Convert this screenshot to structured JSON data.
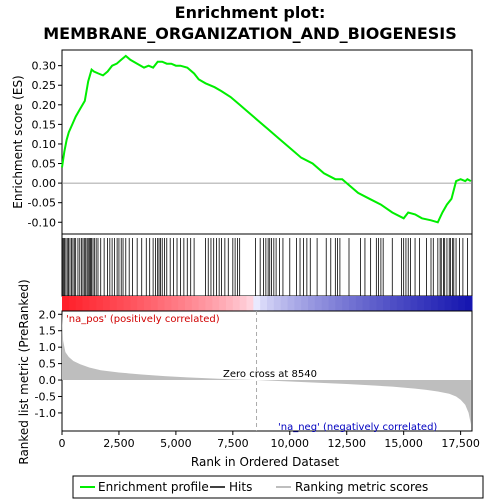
{
  "chart_data": {
    "type": "line",
    "title_line1": "Enrichment plot:",
    "title_line2": "MEMBRANE_ORGANIZATION_AND_BIOGENESIS",
    "xlabel": "Rank in Ordered Dataset",
    "es_ylabel": "Enrichment score (ES)",
    "metric_ylabel": "Ranked list metric (PreRanked)",
    "xlim": [
      0,
      18000
    ],
    "es_ylim": [
      -0.13,
      0.34
    ],
    "metric_ylim": [
      -1.55,
      2.1
    ],
    "x_ticks": [
      0,
      2500,
      5000,
      7500,
      10000,
      12500,
      15000,
      17500
    ],
    "x_tick_labels": [
      "0",
      "2,500",
      "5,000",
      "7,500",
      "10,000",
      "12,500",
      "15,000",
      "17,500"
    ],
    "es_ticks": [
      -0.1,
      -0.05,
      0.0,
      0.05,
      0.1,
      0.15,
      0.2,
      0.25,
      0.3
    ],
    "es_tick_labels": [
      "-0.10",
      "-0.05",
      "0.00",
      "0.05",
      "0.10",
      "0.15",
      "0.20",
      "0.25",
      "0.30"
    ],
    "metric_ticks": [
      2.0,
      1.5,
      1.0,
      0.5,
      0.0,
      -0.5,
      -1.0
    ],
    "metric_tick_labels": [
      "2.0",
      "1.5",
      "1.0",
      "0.5",
      "0.0",
      "-0.5",
      "-1.0"
    ],
    "enrichment_profile": {
      "name": "Enrichment profile",
      "color": "#00ee00",
      "x": [
        0,
        100,
        200,
        300,
        450,
        600,
        800,
        1000,
        1150,
        1300,
        1400,
        1600,
        1800,
        2000,
        2200,
        2400,
        2600,
        2800,
        3000,
        3300,
        3600,
        3800,
        4000,
        4200,
        4400,
        4600,
        4800,
        5000,
        5200,
        5500,
        5800,
        6000,
        6300,
        6700,
        7000,
        7400,
        7800,
        8200,
        8600,
        9000,
        9500,
        10000,
        10500,
        11000,
        11500,
        12000,
        12300,
        12600,
        13000,
        13500,
        14000,
        14500,
        15000,
        15200,
        15500,
        15800,
        16200,
        16500,
        16700,
        16900,
        17100,
        17300,
        17500,
        17700,
        17800,
        17950
      ],
      "y": [
        0.04,
        0.08,
        0.11,
        0.13,
        0.15,
        0.17,
        0.19,
        0.21,
        0.26,
        0.29,
        0.285,
        0.28,
        0.275,
        0.285,
        0.3,
        0.305,
        0.315,
        0.325,
        0.315,
        0.305,
        0.295,
        0.3,
        0.295,
        0.31,
        0.31,
        0.305,
        0.305,
        0.3,
        0.3,
        0.295,
        0.28,
        0.265,
        0.255,
        0.245,
        0.235,
        0.22,
        0.2,
        0.18,
        0.16,
        0.14,
        0.115,
        0.09,
        0.065,
        0.05,
        0.025,
        0.01,
        0.01,
        -0.005,
        -0.025,
        -0.04,
        -0.055,
        -0.075,
        -0.09,
        -0.075,
        -0.08,
        -0.09,
        -0.095,
        -0.1,
        -0.075,
        -0.055,
        -0.04,
        0.005,
        0.01,
        0.005,
        0.01,
        0.005
      ]
    },
    "hits": [
      20,
      60,
      110,
      170,
      230,
      290,
      350,
      420,
      480,
      540,
      600,
      700,
      780,
      850,
      920,
      980,
      1040,
      1100,
      1150,
      1200,
      1250,
      1300,
      1360,
      1420,
      1500,
      1580,
      1700,
      1850,
      2000,
      2100,
      2200,
      2300,
      2420,
      2500,
      2600,
      2680,
      2800,
      2950,
      3100,
      3300,
      3500,
      3700,
      3850,
      4000,
      4100,
      4200,
      4260,
      4320,
      4400,
      4500,
      4600,
      4750,
      4900,
      5050,
      5200,
      5350,
      5500,
      5650,
      5800,
      6300,
      6420,
      6540,
      6660,
      6780,
      6900,
      7000,
      7150,
      7300,
      7500,
      7600,
      7700,
      7800,
      8500,
      8700,
      8850,
      8950,
      9050,
      9120,
      9200,
      9300,
      9400,
      9550,
      9700,
      10000,
      10300,
      10450,
      10600,
      10750,
      10900,
      11200,
      11600,
      11800,
      12000,
      12100,
      12200,
      12600,
      13100,
      13300,
      13550,
      13800,
      13900,
      14000,
      14100,
      14500,
      14900,
      15000,
      15100,
      15200,
      15300,
      15500,
      15700,
      16000,
      16200,
      16300,
      16500,
      16600,
      16650,
      16750,
      16800,
      16900,
      17000,
      17050,
      17150,
      17200,
      17300,
      17450,
      17600,
      17800
    ],
    "metric": {
      "x": [
        0,
        50,
        150,
        300,
        500,
        800,
        1200,
        1700,
        2500,
        3500,
        4500,
        5500,
        6500,
        7500,
        8540,
        9500,
        10500,
        11500,
        12500,
        13500,
        14500,
        15500,
        16000,
        16500,
        17000,
        17300,
        17500,
        17700,
        17850,
        17950
      ],
      "y": [
        2.05,
        1.2,
        0.85,
        0.7,
        0.58,
        0.48,
        0.38,
        0.3,
        0.23,
        0.17,
        0.12,
        0.08,
        0.05,
        0.02,
        0.0,
        -0.03,
        -0.06,
        -0.09,
        -0.12,
        -0.16,
        -0.2,
        -0.26,
        -0.3,
        -0.35,
        -0.42,
        -0.5,
        -0.6,
        -0.75,
        -1.0,
        -1.35
      ]
    },
    "zero_cross_label": "Zero cross at 8540",
    "zero_cross_x": 8540,
    "na_pos_label": "'na_pos' (positively correlated)",
    "na_neg_label": "'na_neg' (negatively correlated)",
    "legend": [
      "Enrichment profile",
      "Hits",
      "Ranking metric scores"
    ],
    "colors": {
      "profile": "#00ee00",
      "hits": "#000000",
      "metric_fill": "#bebebe",
      "pos_label": "#d00000",
      "neg_label": "#0000c0",
      "zero_line": "#aaaaaa"
    }
  }
}
